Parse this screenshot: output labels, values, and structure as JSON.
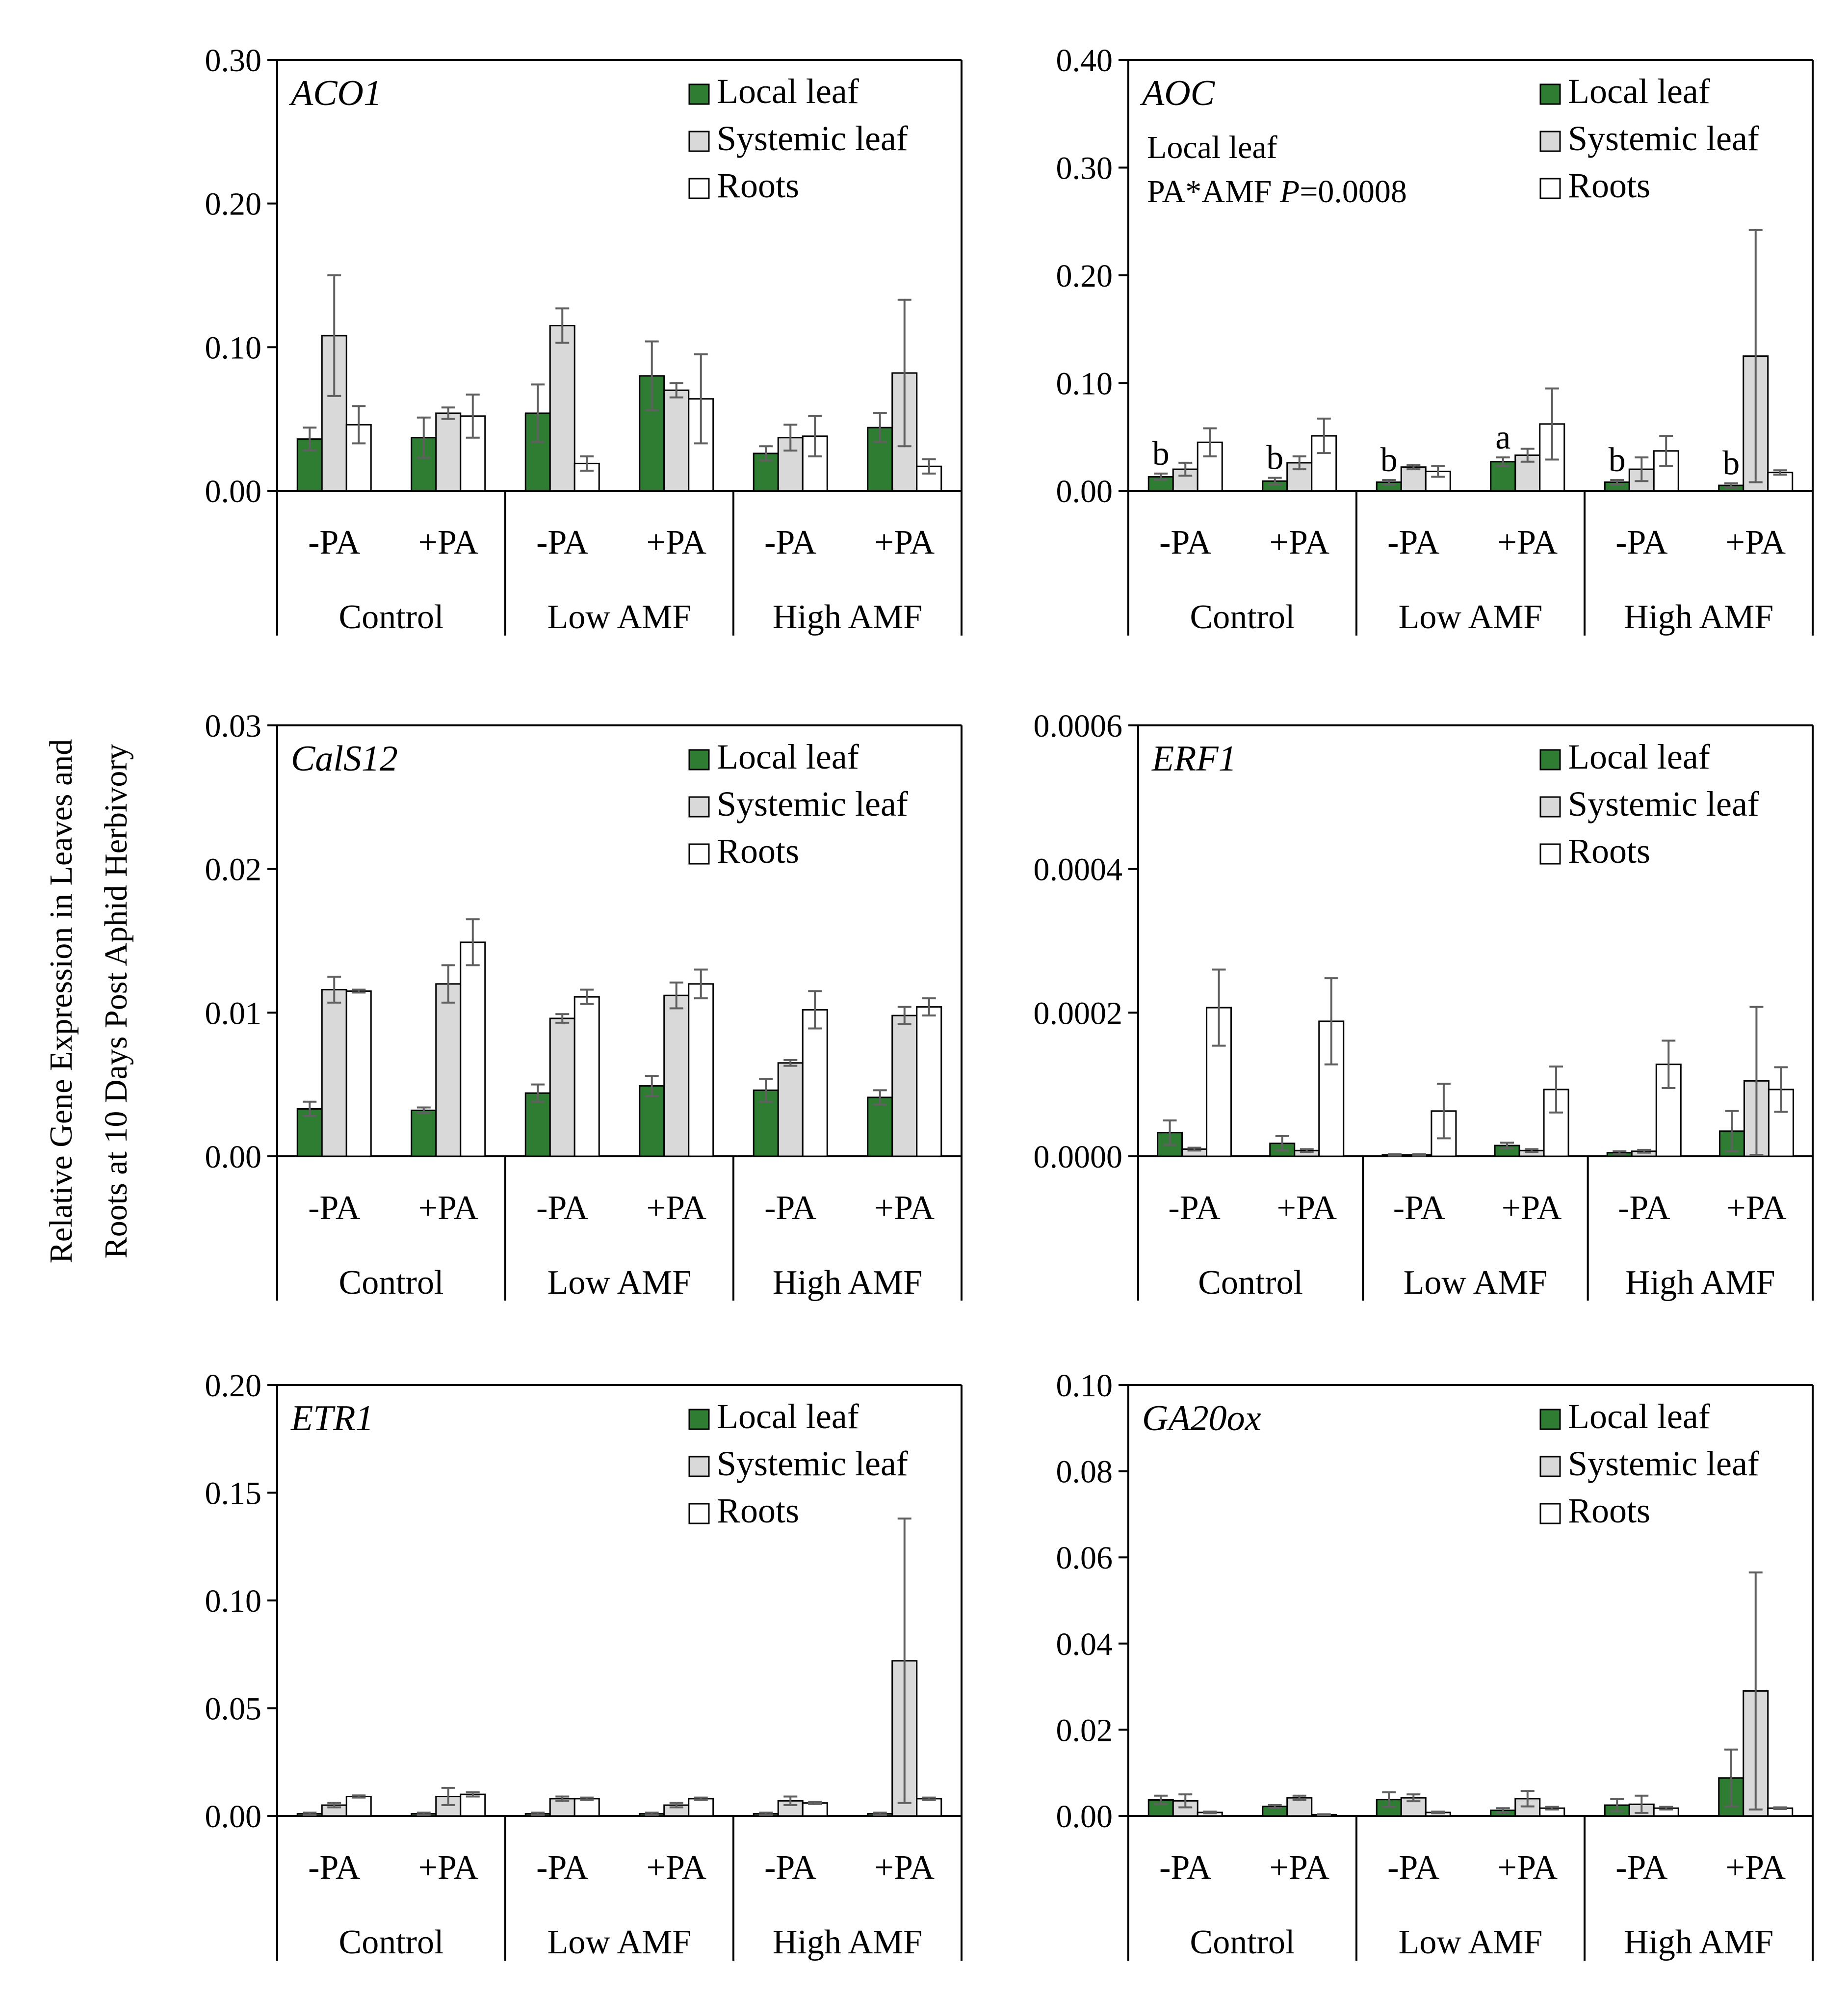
{
  "figure": {
    "y_axis_label_line1": "Relative  Gene  Expression  in  Leaves  and",
    "y_axis_label_line2": "Roots at 10 Days Post Aphid Herbivory"
  },
  "colors": {
    "local_leaf": "#2e7d32",
    "systemic_leaf": "#d9d9d9",
    "roots": "#ffffff",
    "axis": "#000000",
    "error_bar": "#606060"
  },
  "chart_data": [
    {
      "type": "bar",
      "title": "ACO1",
      "categories": [
        "-PA",
        "+PA",
        "-PA",
        "+PA",
        "-PA",
        "+PA"
      ],
      "groups": [
        "Control",
        "Low AMF",
        "High AMF"
      ],
      "yticks": [
        "0.00",
        "0.10",
        "0.20",
        "0.30"
      ],
      "ylim": [
        0,
        0.3
      ],
      "legend": [
        "Local leaf",
        "Systemic leaf",
        "Roots"
      ],
      "annotations": [],
      "letters": [],
      "series": [
        {
          "name": "Local leaf",
          "values": [
            0.036,
            0.037,
            0.054,
            0.08,
            0.026,
            0.044
          ],
          "errors": [
            0.008,
            0.014,
            0.02,
            0.024,
            0.005,
            0.01
          ]
        },
        {
          "name": "Systemic leaf",
          "values": [
            0.108,
            0.054,
            0.115,
            0.07,
            0.037,
            0.082
          ],
          "errors": [
            0.042,
            0.004,
            0.012,
            0.005,
            0.009,
            0.051
          ]
        },
        {
          "name": "Roots",
          "values": [
            0.046,
            0.052,
            0.019,
            0.064,
            0.038,
            0.017
          ],
          "errors": [
            0.013,
            0.015,
            0.005,
            0.031,
            0.014,
            0.005
          ]
        }
      ]
    },
    {
      "type": "bar",
      "title": "AOC",
      "categories": [
        "-PA",
        "+PA",
        "-PA",
        "+PA",
        "-PA",
        "+PA"
      ],
      "groups": [
        "Control",
        "Low AMF",
        "High AMF"
      ],
      "yticks": [
        "0.00",
        "0.10",
        "0.20",
        "0.30",
        "0.40"
      ],
      "ylim": [
        0,
        0.4
      ],
      "legend": [
        "Local leaf",
        "Systemic leaf",
        "Roots"
      ],
      "annotations": [
        {
          "plain": "Local leaf",
          "italic": "",
          "tail": ""
        },
        {
          "plain": "PA*AMF ",
          "italic": "P",
          "tail": "=0.0008"
        }
      ],
      "letters": [
        "b",
        "b",
        "b",
        "a",
        "b",
        "b"
      ],
      "series": [
        {
          "name": "Local leaf",
          "values": [
            0.013,
            0.009,
            0.008,
            0.027,
            0.008,
            0.005
          ],
          "errors": [
            0.003,
            0.003,
            0.002,
            0.004,
            0.002,
            0.002
          ]
        },
        {
          "name": "Systemic leaf",
          "values": [
            0.02,
            0.026,
            0.022,
            0.033,
            0.02,
            0.125
          ],
          "errors": [
            0.006,
            0.006,
            0.002,
            0.006,
            0.011,
            0.117
          ]
        },
        {
          "name": "Roots",
          "values": [
            0.045,
            0.051,
            0.018,
            0.062,
            0.037,
            0.017
          ],
          "errors": [
            0.013,
            0.016,
            0.005,
            0.033,
            0.014,
            0.002
          ]
        }
      ]
    },
    {
      "type": "bar",
      "title": "CalS12",
      "categories": [
        "-PA",
        "+PA",
        "-PA",
        "+PA",
        "-PA",
        "+PA"
      ],
      "groups": [
        "Control",
        "Low AMF",
        "High AMF"
      ],
      "yticks": [
        "0.00",
        "0.01",
        "0.02",
        "0.03"
      ],
      "ylim": [
        0,
        0.03
      ],
      "legend": [
        "Local leaf",
        "Systemic leaf",
        "Roots"
      ],
      "annotations": [],
      "letters": [],
      "series": [
        {
          "name": "Local leaf",
          "values": [
            0.0033,
            0.0032,
            0.0044,
            0.0049,
            0.0046,
            0.0041
          ],
          "errors": [
            0.0005,
            0.0002,
            0.0006,
            0.0007,
            0.0008,
            0.0005
          ]
        },
        {
          "name": "Systemic leaf",
          "values": [
            0.0116,
            0.012,
            0.0096,
            0.0112,
            0.0065,
            0.0098
          ],
          "errors": [
            0.0009,
            0.0013,
            0.0003,
            0.0009,
            0.0002,
            0.0006
          ]
        },
        {
          "name": "Roots",
          "values": [
            0.0115,
            0.0149,
            0.0111,
            0.012,
            0.0102,
            0.0104
          ],
          "errors": [
            0.0001,
            0.0016,
            0.0005,
            0.001,
            0.0013,
            0.0006
          ]
        }
      ]
    },
    {
      "type": "bar",
      "title": "ERF1",
      "categories": [
        "-PA",
        "+PA",
        "-PA",
        "+PA",
        "-PA",
        "+PA"
      ],
      "groups": [
        "Control",
        "Low AMF",
        "High AMF"
      ],
      "yticks": [
        "0.0000",
        "0.0002",
        "0.0004",
        "0.0006"
      ],
      "ylim": [
        0,
        0.0006
      ],
      "legend": [
        "Local leaf",
        "Systemic leaf",
        "Roots"
      ],
      "annotations": [],
      "letters": [],
      "series": [
        {
          "name": "Local leaf",
          "values": [
            3.3e-05,
            1.8e-05,
            2e-06,
            1.5e-05,
            5e-06,
            3.5e-05
          ],
          "errors": [
            1.7e-05,
            1e-05,
            1e-06,
            4e-06,
            2e-06,
            2.8e-05
          ]
        },
        {
          "name": "Systemic leaf",
          "values": [
            1e-05,
            8e-06,
            2e-06,
            8e-06,
            7e-06,
            0.000105
          ],
          "errors": [
            2e-06,
            2e-06,
            1e-06,
            2e-06,
            2e-06,
            0.000103
          ]
        },
        {
          "name": "Roots",
          "values": [
            0.000207,
            0.000188,
            6.3e-05,
            9.3e-05,
            0.000128,
            9.3e-05
          ],
          "errors": [
            5.3e-05,
            6e-05,
            3.8e-05,
            3.2e-05,
            3.3e-05,
            3.1e-05
          ]
        }
      ]
    },
    {
      "type": "bar",
      "title": "ETR1",
      "categories": [
        "-PA",
        "+PA",
        "-PA",
        "+PA",
        "-PA",
        "+PA"
      ],
      "groups": [
        "Control",
        "Low AMF",
        "High AMF"
      ],
      "yticks": [
        "0.00",
        "0.05",
        "0.10",
        "0.15",
        "0.20"
      ],
      "ylim": [
        0,
        0.2
      ],
      "legend": [
        "Local leaf",
        "Systemic leaf",
        "Roots"
      ],
      "annotations": [],
      "letters": [],
      "series": [
        {
          "name": "Local leaf",
          "values": [
            0.001,
            0.001,
            0.001,
            0.001,
            0.001,
            0.001
          ],
          "errors": [
            0.0005,
            0.0005,
            0.0005,
            0.0005,
            0.0005,
            0.0005
          ]
        },
        {
          "name": "Systemic leaf",
          "values": [
            0.005,
            0.009,
            0.008,
            0.005,
            0.007,
            0.072
          ],
          "errors": [
            0.001,
            0.004,
            0.001,
            0.001,
            0.002,
            0.066
          ]
        },
        {
          "name": "Roots",
          "values": [
            0.009,
            0.01,
            0.008,
            0.008,
            0.006,
            0.008
          ],
          "errors": [
            0.0005,
            0.001,
            0.0005,
            0.0005,
            0.0005,
            0.0005
          ]
        }
      ]
    },
    {
      "type": "bar",
      "title": "GA20ox",
      "categories": [
        "-PA",
        "+PA",
        "-PA",
        "+PA",
        "-PA",
        "+PA"
      ],
      "groups": [
        "Control",
        "Low AMF",
        "High AMF"
      ],
      "yticks": [
        "0.00",
        "0.02",
        "0.04",
        "0.06",
        "0.08",
        "0.10"
      ],
      "ylim": [
        0,
        0.1
      ],
      "legend": [
        "Local leaf",
        "Systemic leaf",
        "Roots"
      ],
      "annotations": [],
      "letters": [],
      "series": [
        {
          "name": "Local leaf",
          "values": [
            0.0037,
            0.0022,
            0.0038,
            0.0013,
            0.0025,
            0.0088
          ],
          "errors": [
            0.001,
            0.0003,
            0.0017,
            0.0005,
            0.0014,
            0.0066
          ]
        },
        {
          "name": "Systemic leaf",
          "values": [
            0.0035,
            0.0042,
            0.0042,
            0.004,
            0.0027,
            0.029
          ],
          "errors": [
            0.0015,
            0.0005,
            0.0008,
            0.0018,
            0.002,
            0.0275
          ]
        },
        {
          "name": "Roots",
          "values": [
            0.0008,
            0.0003,
            0.0008,
            0.0018,
            0.0018,
            0.0018
          ],
          "errors": [
            0.0002,
            0.0001,
            0.0002,
            0.0003,
            0.0003,
            0.0002
          ]
        }
      ]
    }
  ]
}
